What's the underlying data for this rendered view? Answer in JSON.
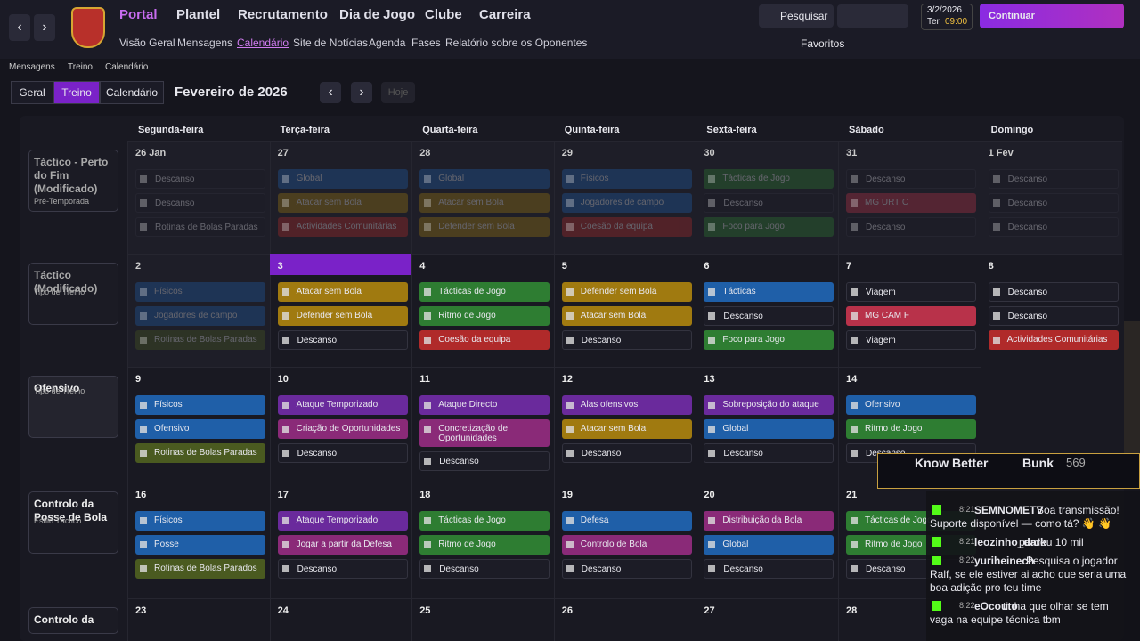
{
  "nav": {
    "menus": [
      "Portal",
      "Plantel",
      "Recrutamento",
      "Dia de Jogo",
      "Clube",
      "Carreira"
    ],
    "submenu": [
      "Visão Geral",
      "Mensagens",
      "Calendário",
      "Site de Notícias",
      "Agenda",
      "Fases",
      "Relatório sobre os Oponentes"
    ],
    "search": "Pesquisar",
    "date": "3/2/2026",
    "weekday": "Ter",
    "time": "09:00",
    "continue": "Continuar",
    "favorites": "Favoritos"
  },
  "breadcrumb": [
    "Mensagens",
    "Treino",
    "Calendário"
  ],
  "toolbar": {
    "tabs": [
      "Geral",
      "Treino",
      "Calendário"
    ],
    "month": "Fevereiro de 2026",
    "today": "Hoje"
  },
  "weekdays": [
    "Segunda-feira",
    "Terça-feira",
    "Quarta-feira",
    "Quinta-feira",
    "Sexta-feira",
    "Sábado",
    "Domingo"
  ],
  "today": "3",
  "weeks": [
    {
      "focus": {
        "title": "Táctico - Perto do Fim (Modificado)",
        "subtitle": "Pré-Temporada"
      },
      "days": [
        {
          "date": "26 Jan",
          "items": [
            {
              "label": "Descanso",
              "color": "#1c1c26"
            },
            {
              "label": "Descanso",
              "color": "#1c1c26"
            },
            {
              "label": "Rotinas de Bolas Paradas",
              "color": "#1c1c26"
            }
          ]
        },
        {
          "date": "27",
          "items": [
            {
              "label": "Global",
              "color": "#1f5fa8"
            },
            {
              "label": "Atacar sem Bola",
              "color": "#a07a10"
            },
            {
              "label": "Actividades Comunitárias",
              "color": "#b02a2a"
            }
          ]
        },
        {
          "date": "28",
          "items": [
            {
              "label": "Global",
              "color": "#1f5fa8"
            },
            {
              "label": "Atacar sem Bola",
              "color": "#a07a10"
            },
            {
              "label": "Defender sem Bola",
              "color": "#a07a10"
            }
          ]
        },
        {
          "date": "29",
          "items": [
            {
              "label": "Físicos",
              "color": "#1f5fa8"
            },
            {
              "label": "Jogadores de campo",
              "color": "#1f5fa8"
            },
            {
              "label": "Coesão da equipa",
              "color": "#b02a2a"
            }
          ]
        },
        {
          "date": "30",
          "items": [
            {
              "label": "Tácticas de Jogo",
              "color": "#2e7d32"
            },
            {
              "label": "Descanso",
              "color": "#1c1c26"
            },
            {
              "label": "Foco para Jogo",
              "color": "#2e7d32"
            }
          ]
        },
        {
          "date": "31",
          "items": [
            {
              "label": "Descanso",
              "color": "#1c1c26"
            },
            {
              "label": "MG  URT  C",
              "color": "#b8324a"
            },
            {
              "label": "Descanso",
              "color": "#1c1c26"
            }
          ]
        },
        {
          "date": "1 Fev",
          "items": [
            {
              "label": "Descanso",
              "color": "#1c1c26"
            },
            {
              "label": "Descanso",
              "color": "#1c1c26"
            },
            {
              "label": "Descanso",
              "color": "#1c1c26"
            }
          ]
        }
      ]
    },
    {
      "focus": {
        "title": "Táctico (Modificado)",
        "subtitle": "Tipo de Treino"
      },
      "days": [
        {
          "date": "2",
          "items": [
            {
              "label": "Físicos",
              "color": "#1f5fa8"
            },
            {
              "label": "Jogadores de campo",
              "color": "#1f5fa8"
            },
            {
              "label": "Rotinas de Bolas Paradas",
              "color": "#4a5a20"
            }
          ]
        },
        {
          "date": "3",
          "items": [
            {
              "label": "Atacar sem Bola",
              "color": "#a07a10"
            },
            {
              "label": "Defender sem Bola",
              "color": "#a07a10"
            },
            {
              "label": "Descanso",
              "color": "#1c1c26"
            }
          ]
        },
        {
          "date": "4",
          "items": [
            {
              "label": "Tácticas de Jogo",
              "color": "#2e7d32"
            },
            {
              "label": "Ritmo de Jogo",
              "color": "#2e7d32"
            },
            {
              "label": "Coesão da equipa",
              "color": "#b02a2a"
            }
          ]
        },
        {
          "date": "5",
          "items": [
            {
              "label": "Defender sem Bola",
              "color": "#a07a10"
            },
            {
              "label": "Atacar sem Bola",
              "color": "#a07a10"
            },
            {
              "label": "Descanso",
              "color": "#1c1c26"
            }
          ]
        },
        {
          "date": "6",
          "items": [
            {
              "label": "Tácticas",
              "color": "#1f5fa8"
            },
            {
              "label": "Descanso",
              "color": "#1c1c26"
            },
            {
              "label": "Foco para Jogo",
              "color": "#2e7d32"
            }
          ]
        },
        {
          "date": "7",
          "items": [
            {
              "label": "Viagem",
              "color": "#1c1c26"
            },
            {
              "label": "MG  CAM  F",
              "color": "#b8324a"
            },
            {
              "label": "Viagem",
              "color": "#1c1c26"
            }
          ]
        },
        {
          "date": "8",
          "items": [
            {
              "label": "Descanso",
              "color": "#1c1c26"
            },
            {
              "label": "Descanso",
              "color": "#1c1c26"
            },
            {
              "label": "Actividades Comunitárias",
              "color": "#b02a2a"
            }
          ]
        }
      ]
    },
    {
      "focus": {
        "title": "Ofensivo",
        "subtitle": "Tipo de Treino"
      },
      "days": [
        {
          "date": "9",
          "items": [
            {
              "label": "Físicos",
              "color": "#1f5fa8"
            },
            {
              "label": "Ofensivo",
              "color": "#1f5fa8"
            },
            {
              "label": "Rotinas de Bolas Paradas",
              "color": "#4a5a20"
            }
          ]
        },
        {
          "date": "10",
          "items": [
            {
              "label": "Ataque Temporizado",
              "color": "#6a2a9c"
            },
            {
              "label": "Criação de Oportunidades",
              "color": "#8a2a78"
            },
            {
              "label": "Descanso",
              "color": "#1c1c26"
            }
          ]
        },
        {
          "date": "11",
          "items": [
            {
              "label": "Ataque Directo",
              "color": "#6a2a9c"
            },
            {
              "label": "Concretização de Oportunidades",
              "color": "#8a2a78"
            },
            {
              "label": "Descanso",
              "color": "#1c1c26"
            }
          ]
        },
        {
          "date": "12",
          "items": [
            {
              "label": "Alas ofensivos",
              "color": "#6a2a9c"
            },
            {
              "label": "Atacar sem Bola",
              "color": "#a07a10"
            },
            {
              "label": "Descanso",
              "color": "#1c1c26"
            }
          ]
        },
        {
          "date": "13",
          "items": [
            {
              "label": "Sobreposição do ataque",
              "color": "#6a2a9c"
            },
            {
              "label": "Global",
              "color": "#1f5fa8"
            },
            {
              "label": "Descanso",
              "color": "#1c1c26"
            }
          ]
        },
        {
          "date": "14",
          "items": [
            {
              "label": "Ofensivo",
              "color": "#1f5fa8"
            },
            {
              "label": "Ritmo de Jogo",
              "color": "#2e7d32"
            },
            {
              "label": "Descanso",
              "color": "#1c1c26"
            }
          ]
        }
      ]
    },
    {
      "focus": {
        "title": "Controlo da Posse de Bola",
        "subtitle": "Estilo Táctico"
      },
      "days": [
        {
          "date": "16",
          "items": [
            {
              "label": "Físicos",
              "color": "#1f5fa8"
            },
            {
              "label": "Posse",
              "color": "#1f5fa8"
            },
            {
              "label": "Rotinas de Bolas Parados",
              "color": "#4a5a20"
            }
          ]
        },
        {
          "date": "17",
          "items": [
            {
              "label": "Ataque Temporizado",
              "color": "#6a2a9c"
            },
            {
              "label": "Jogar a partir da Defesa",
              "color": "#8a2a78"
            },
            {
              "label": "Descanso",
              "color": "#1c1c26"
            }
          ]
        },
        {
          "date": "18",
          "items": [
            {
              "label": "Tácticas de Jogo",
              "color": "#2e7d32"
            },
            {
              "label": "Ritmo de Jogo",
              "color": "#2e7d32"
            },
            {
              "label": "Descanso",
              "color": "#1c1c26"
            }
          ]
        },
        {
          "date": "19",
          "items": [
            {
              "label": "Defesa",
              "color": "#1f5fa8"
            },
            {
              "label": "Controlo de Bola",
              "color": "#8a2a78"
            },
            {
              "label": "Descanso",
              "color": "#1c1c26"
            }
          ]
        },
        {
          "date": "20",
          "items": [
            {
              "label": "Distribuição da Bola",
              "color": "#8a2a78"
            },
            {
              "label": "Global",
              "color": "#1f5fa8"
            },
            {
              "label": "Descanso",
              "color": "#1c1c26"
            }
          ]
        },
        {
          "date": "21",
          "items": [
            {
              "label": "Tácticas de Jogo",
              "color": "#2e7d32"
            },
            {
              "label": "Ritmo de Jogo",
              "color": "#2e7d32"
            },
            {
              "label": "Descanso",
              "color": "#1c1c26"
            }
          ]
        }
      ]
    },
    {
      "focus": {
        "title": "Controlo da",
        "subtitle": ""
      },
      "days": [
        {
          "date": "23",
          "items": []
        },
        {
          "date": "24",
          "items": []
        },
        {
          "date": "25",
          "items": []
        },
        {
          "date": "26",
          "items": []
        },
        {
          "date": "27",
          "items": []
        },
        {
          "date": "28",
          "items": []
        }
      ]
    }
  ],
  "stream": {
    "banner": "Know Better",
    "name": "Bunk",
    "count": "569",
    "chat": [
      {
        "time": "8:21",
        "user": "SEMNOMETV",
        "text": "Boa transmissão! Suporte disponível — como tá? 👋 👋"
      },
      {
        "time": "8:21",
        "user": "leozinho_dark",
        "text": "perdeu 10 mil"
      },
      {
        "time": "8:22",
        "user": "yuriheinech",
        "text": "Pesquisa o jogador Ralf, se ele estiver ai acho que seria uma boa adição pro teu time"
      },
      {
        "time": "8:22",
        "user": "eOcouto",
        "text": "tinha que olhar se tem vaga na equipe técnica tbm"
      }
    ]
  }
}
